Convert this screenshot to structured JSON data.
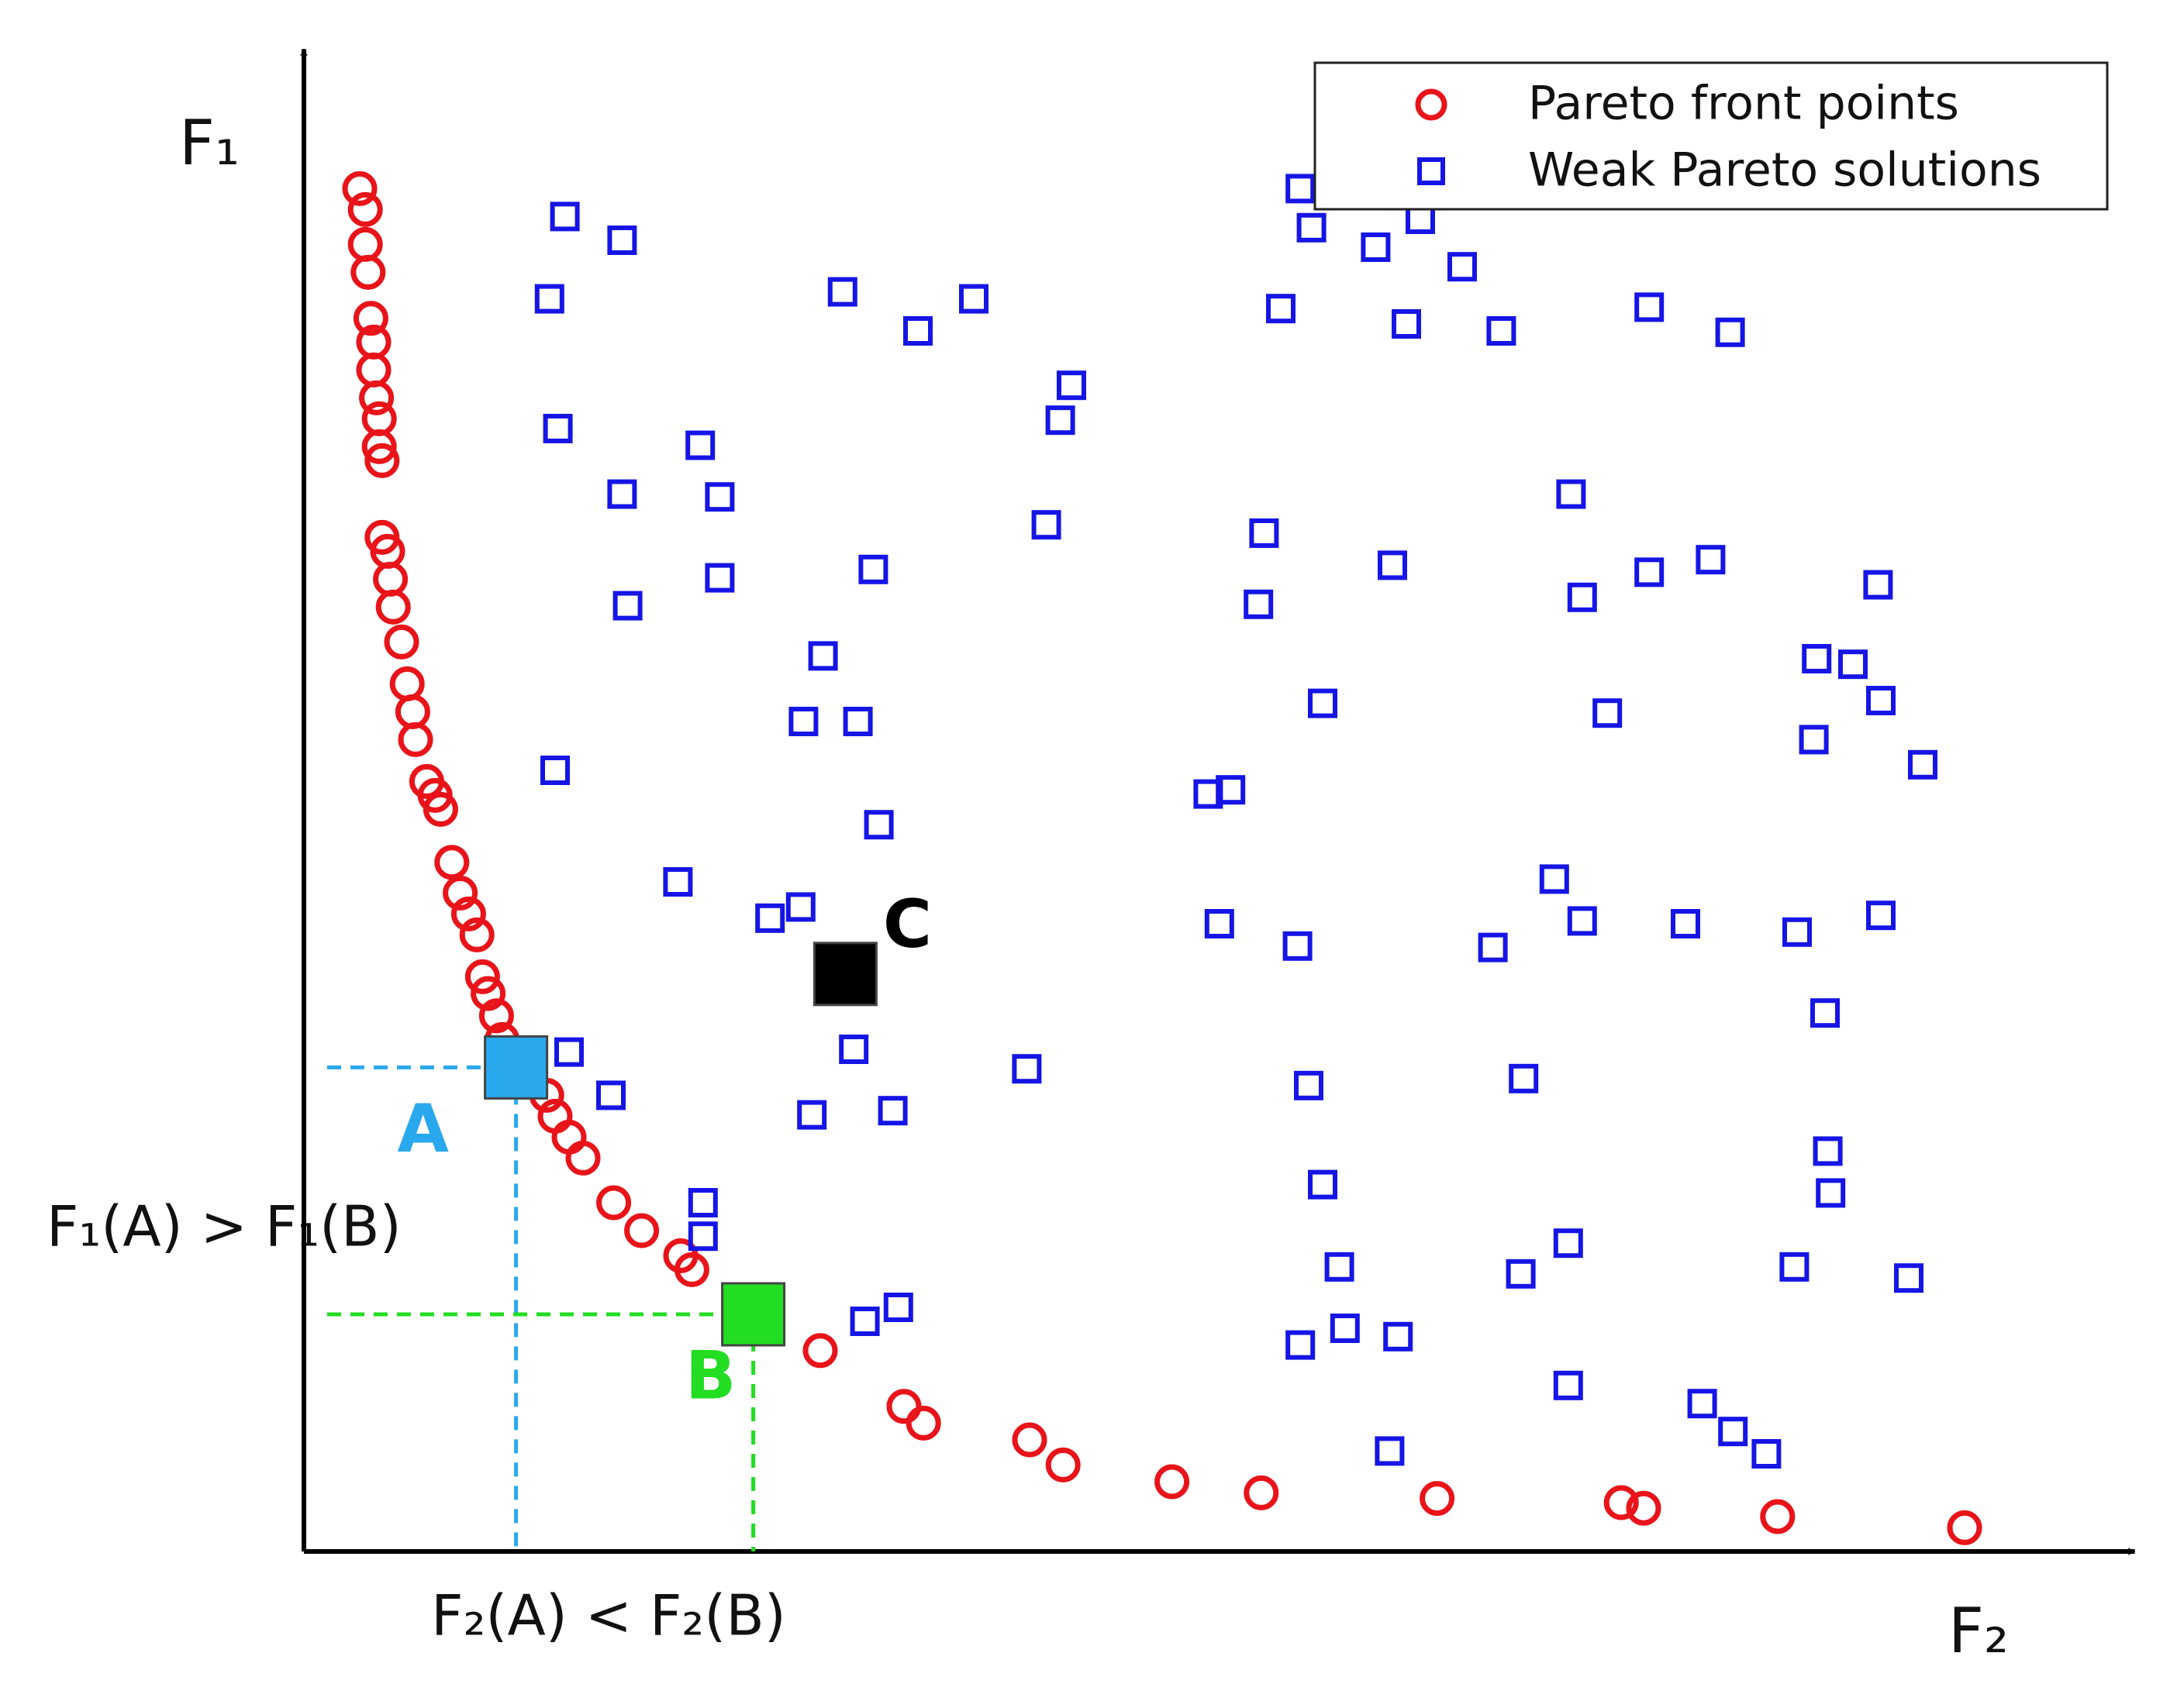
{
  "chart_data": {
    "type": "scatter",
    "x_label": "F₂",
    "y_label": "F₁",
    "xlim": [
      0,
      1312
    ],
    "ylim": [
      0,
      1077
    ],
    "legend": "upper right",
    "series": [
      {
        "name": "Pareto front points",
        "color": "#e8141a",
        "marker": "circle",
        "x": [
          40,
          44,
          44,
          46,
          48,
          50,
          50,
          52,
          54,
          54,
          56,
          56,
          60,
          62,
          64,
          70,
          74,
          78,
          80,
          88,
          94,
          98,
          106,
          112,
          118,
          124,
          128,
          132,
          138,
          142,
          162,
          174,
          180,
          190,
          200,
          222,
          242,
          270,
          278,
          370,
          430,
          444,
          520,
          544,
          622,
          686,
          812,
          944,
          960,
          1056,
          1190
        ],
        "values": [
          977,
          962,
          937,
          917,
          884,
          867,
          847,
          827,
          812,
          792,
          782,
          727,
          717,
          697,
          677,
          652,
          622,
          602,
          582,
          552,
          542,
          532,
          494,
          472,
          457,
          442,
          412,
          400,
          384,
          367,
          342,
          327,
          312,
          297,
          282,
          250,
          230,
          212,
          202,
          144,
          104,
          92,
          80,
          62,
          50,
          42,
          38,
          35,
          31,
          25,
          17
        ]
      },
      {
        "name": "Weak Pareto solutions",
        "color": "#1515e6",
        "marker": "square",
        "x": [
          187,
          228,
          176,
          386,
          440,
          480,
          550,
          542,
          182,
          284,
          228,
          298,
          532,
          298,
          232,
          408,
          372,
          358,
          397,
          180,
          412,
          268,
          334,
          356,
          190,
          220,
          394,
          364,
          422,
          518,
          286,
          286,
          402,
          426,
          714,
          722,
          768,
          800,
          802,
          830,
          700,
          790,
          858,
          964,
          1022,
          908,
          688,
          780,
          684,
          916,
          964,
          1008,
          1128,
          730,
          934,
          1084,
          1110,
          1130,
          1082,
          1160,
          648,
          664,
          896,
          656,
          712,
          916,
          852,
          990,
          1070,
          1130,
          1090,
          720,
          874,
          730,
          1092,
          1094,
          742,
          872,
          906,
          1068,
          1150,
          714,
          746,
          784,
          906,
          1002,
          1024,
          1048,
          778
        ],
        "values": [
          957,
          940,
          898,
          903,
          875,
          898,
          836,
          811,
          805,
          793,
          758,
          756,
          736,
          698,
          678,
          704,
          642,
          595,
          595,
          560,
          521,
          480,
          454,
          462,
          358,
          327,
          360,
          313,
          316,
          346,
          250,
          226,
          165,
          175,
          977,
          949,
          935,
          955,
          992,
          921,
          891,
          880,
          875,
          892,
          874,
          758,
          730,
          707,
          679,
          684,
          702,
          711,
          693,
          608,
          601,
          640,
          636,
          610,
          582,
          564,
          543,
          546,
          482,
          450,
          434,
          452,
          433,
          450,
          444,
          456,
          386,
          334,
          339,
          263,
          287,
          257,
          204,
          199,
          221,
          204,
          196,
          148,
          160,
          154,
          119,
          106,
          86,
          70,
          72
        ]
      }
    ],
    "highlights": [
      {
        "label": "A",
        "x": 152,
        "y": 347,
        "color": "#2aa8ee",
        "guide": true
      },
      {
        "label": "B",
        "x": 322,
        "y": 170,
        "color": "#22dd22",
        "guide": true
      },
      {
        "label": "C",
        "x": 388,
        "y": 414,
        "color": "#000000",
        "guide": false
      }
    ],
    "annotations": [
      "F₁(A) > F₁(B)",
      "F₂(A) < F₂(B)"
    ]
  }
}
